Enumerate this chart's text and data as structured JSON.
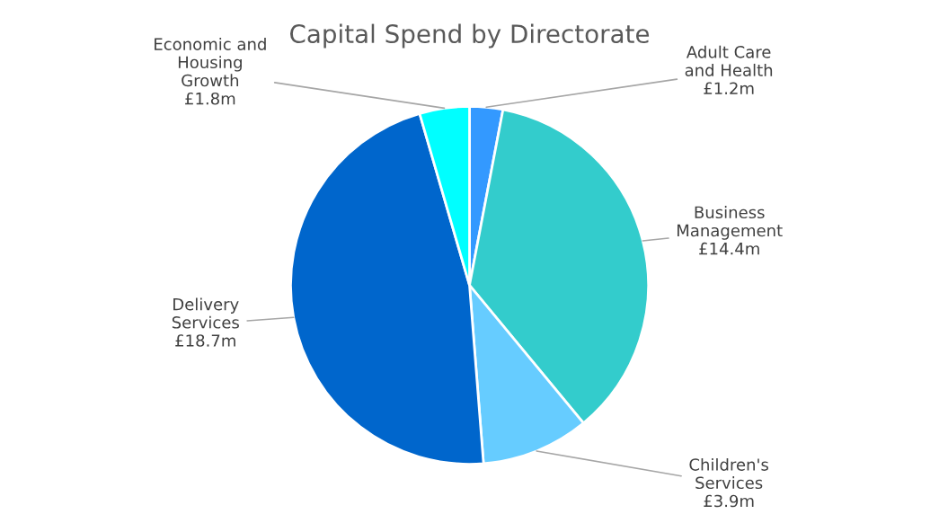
{
  "chart_data": {
    "type": "pie",
    "title": "Capital Spend by Directorate",
    "categories": [
      "Adult Care\nand Health",
      "Business\nManagement",
      "Children's\nServices",
      "Delivery\nServices",
      "Economic and\nHousing\nGrowth"
    ],
    "values": [
      1.2,
      14.4,
      3.9,
      18.7,
      1.8
    ],
    "value_labels": [
      "£1.2m",
      "£14.4m",
      "£3.9m",
      "£18.7m",
      "£1.8m"
    ],
    "colors": [
      "#3399ff",
      "#33cccc",
      "#66ccff",
      "#0066cc",
      "#00ffff"
    ],
    "legend": false
  }
}
